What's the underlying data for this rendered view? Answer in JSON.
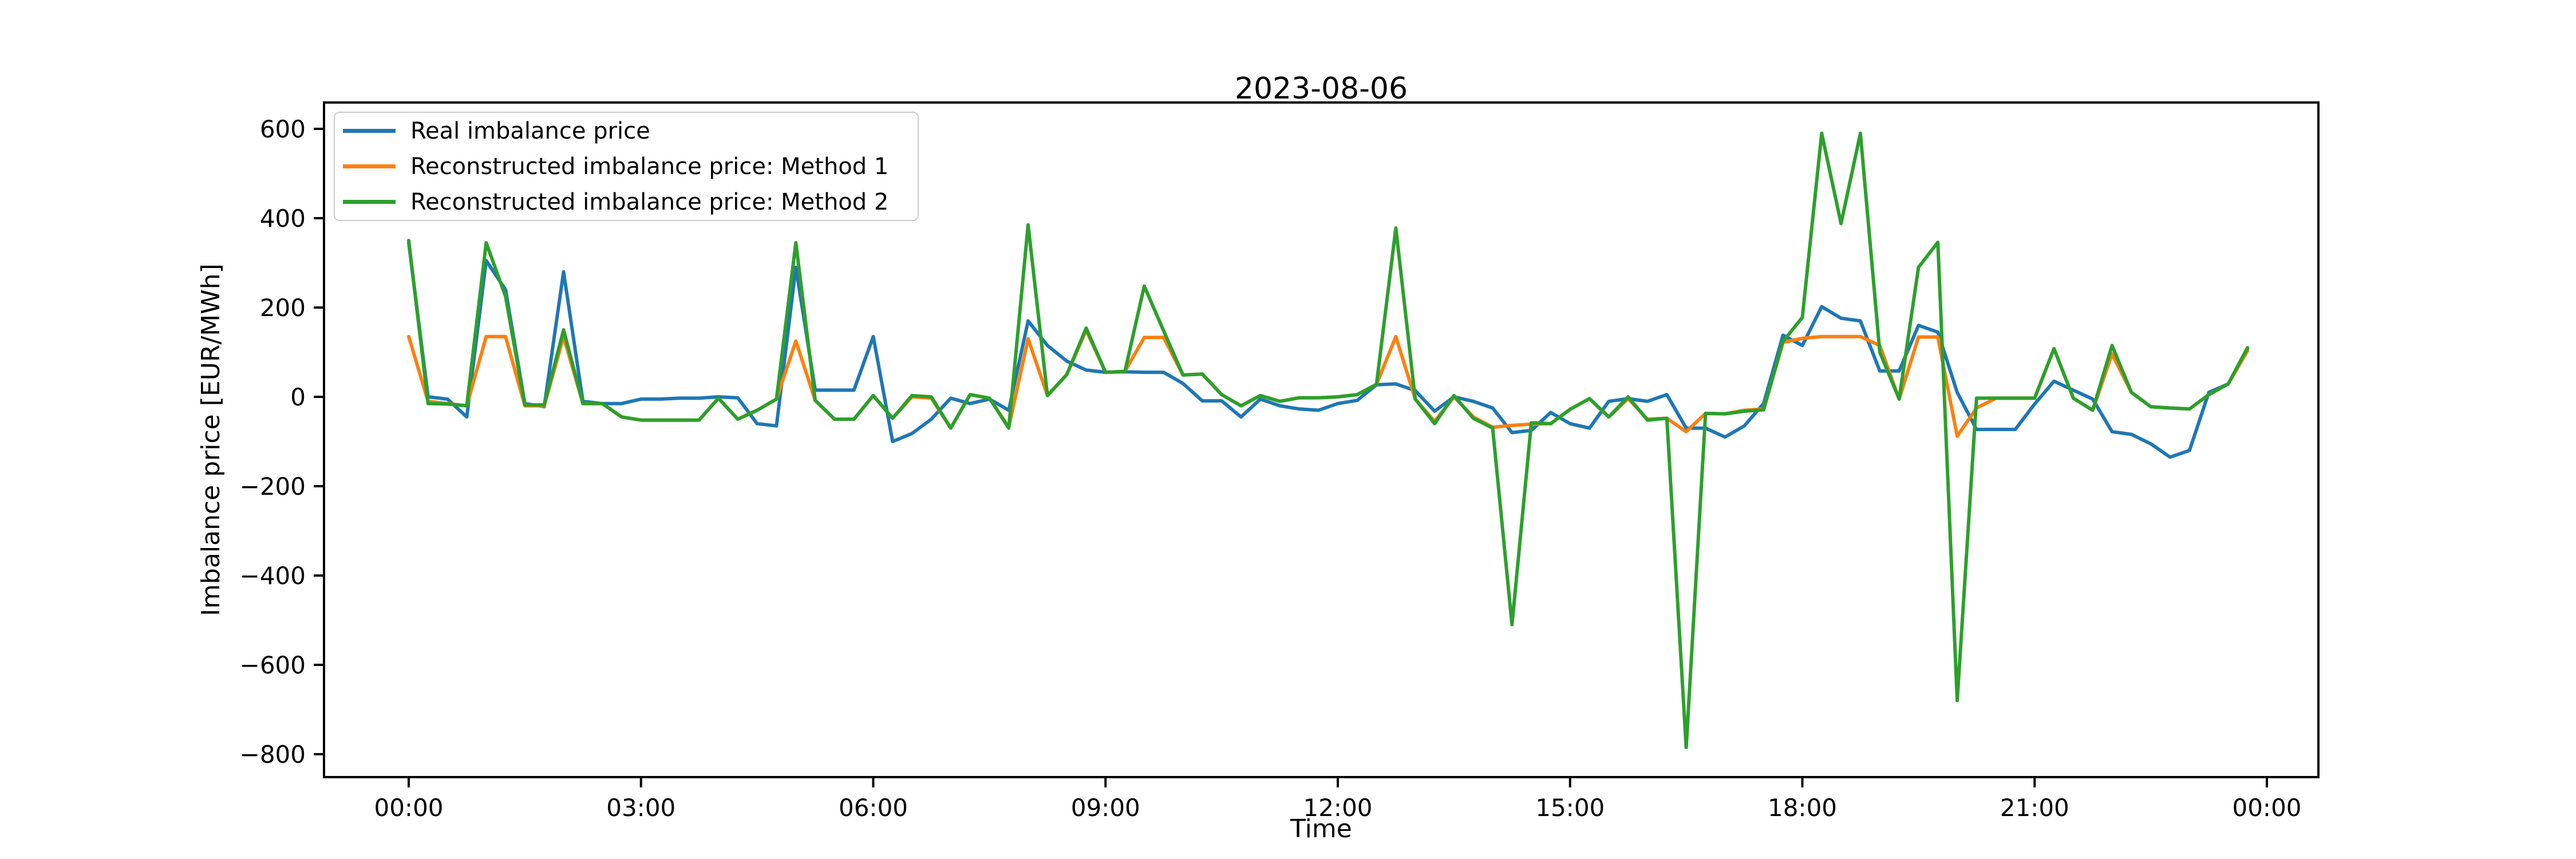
{
  "title": "2023-08-06",
  "axes": {
    "xlabel": "Time",
    "ylabel": "Imbalance price [EUR/MWh]",
    "yticks": [
      600,
      400,
      200,
      0,
      -200,
      -400,
      -600,
      -800
    ],
    "xticks": [
      {
        "label": "00:00",
        "minutes": 0
      },
      {
        "label": "03:00",
        "minutes": 180
      },
      {
        "label": "06:00",
        "minutes": 360
      },
      {
        "label": "09:00",
        "minutes": 540
      },
      {
        "label": "12:00",
        "minutes": 720
      },
      {
        "label": "15:00",
        "minutes": 900
      },
      {
        "label": "18:00",
        "minutes": 1080
      },
      {
        "label": "21:00",
        "minutes": 1260
      },
      {
        "label": "00:00",
        "minutes": 1440
      }
    ]
  },
  "legend": [
    {
      "label": "Real imbalance price",
      "color": "#1f77b4"
    },
    {
      "label": "Reconstructed imbalance price: Method 1",
      "color": "#ff7f0e"
    },
    {
      "label": "Reconstructed imbalance price: Method 2",
      "color": "#2ca02c"
    }
  ],
  "chart_data": {
    "type": "line",
    "title": "2023-08-06",
    "xlabel": "Time",
    "ylabel": "Imbalance price [EUR/MWh]",
    "x_start": "00:00",
    "x_step_minutes": 15,
    "x_points": 96,
    "ylim": [
      -851,
      659
    ],
    "xlim_minutes": [
      -66,
      1481
    ],
    "grid": false,
    "legend_position": "upper left",
    "series": [
      {
        "name": "Real imbalance price",
        "color": "#1f77b4",
        "values": [
          345,
          0,
          -5,
          -45,
          305,
          240,
          -15,
          -22,
          280,
          -10,
          -15,
          -15,
          -5,
          -5,
          -3,
          -3,
          0,
          -2,
          -60,
          -65,
          290,
          15,
          15,
          15,
          135,
          -100,
          -82,
          -50,
          -3,
          -15,
          -5,
          -30,
          170,
          115,
          80,
          60,
          55,
          56,
          55,
          55,
          30,
          -9,
          -9,
          -45,
          -5,
          -20,
          -27,
          -30,
          -15,
          -8,
          27,
          29,
          14,
          -32,
          0,
          -10,
          -25,
          -80,
          -75,
          -35,
          -60,
          -70,
          -10,
          -4,
          -10,
          5,
          -70,
          -70,
          -90,
          -65,
          -15,
          138,
          115,
          202,
          176,
          170,
          58,
          58,
          160,
          145,
          10,
          -73,
          -73,
          -73,
          -16,
          35,
          15,
          -5,
          -78,
          -84,
          -105,
          -135,
          -120,
          10,
          29,
          107
        ]
      },
      {
        "name": "Reconstructed imbalance price: Method 1",
        "color": "#ff7f0e",
        "values": [
          135,
          -10,
          -15,
          -20,
          135,
          135,
          -20,
          -20,
          135,
          -15,
          -15,
          -45,
          -52,
          -52,
          -52,
          -52,
          -3,
          -50,
          -30,
          -5,
          125,
          -8,
          -50,
          -50,
          3,
          -48,
          0,
          -3,
          -70,
          5,
          -3,
          -68,
          130,
          3,
          50,
          149,
          55,
          57,
          133,
          133,
          49,
          51,
          5,
          -20,
          3,
          -10,
          -2,
          -2,
          0,
          5,
          28,
          135,
          -5,
          -55,
          0,
          -45,
          -68,
          -64,
          -61,
          -60,
          -28,
          -4,
          -45,
          -4,
          -50,
          -48,
          -78,
          -37,
          -38,
          -30,
          -27,
          122,
          131,
          135,
          135,
          135,
          115,
          -5,
          134,
          134,
          -88,
          -25,
          -3,
          -3,
          -3,
          108,
          -3,
          -30,
          96,
          10,
          -22,
          -25,
          -27,
          5,
          29,
          103
        ]
      },
      {
        "name": "Reconstructed imbalance price: Method 2",
        "color": "#2ca02c",
        "values": [
          350,
          -15,
          -16,
          -20,
          345,
          225,
          -18,
          -18,
          150,
          -15,
          -15,
          -45,
          -52,
          -52,
          -52,
          -52,
          -3,
          -50,
          -30,
          -5,
          345,
          -8,
          -50,
          -50,
          3,
          -48,
          3,
          0,
          -70,
          5,
          -3,
          -70,
          385,
          3,
          50,
          154,
          55,
          57,
          248,
          148,
          49,
          51,
          5,
          -20,
          3,
          -10,
          -2,
          -2,
          0,
          5,
          28,
          378,
          -5,
          -60,
          3,
          -48,
          -70,
          -510,
          -58,
          -60,
          -28,
          -4,
          -45,
          0,
          -52,
          -48,
          -785,
          -37,
          -38,
          -32,
          -29,
          124,
          178,
          590,
          388,
          590,
          100,
          -5,
          290,
          346,
          -680,
          -3,
          -3,
          -3,
          -3,
          108,
          -3,
          -30,
          115,
          10,
          -22,
          -25,
          -27,
          5,
          29,
          110
        ]
      }
    ]
  }
}
